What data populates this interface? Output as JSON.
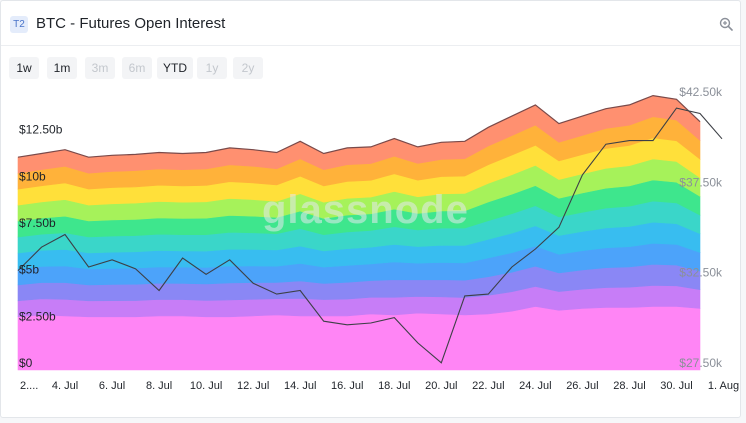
{
  "header": {
    "tier_badge": "T2",
    "title": "BTC - Futures Open Interest"
  },
  "toolbar": {
    "ranges": [
      {
        "label": "1w",
        "enabled": true
      },
      {
        "label": "1m",
        "enabled": true
      },
      {
        "label": "3m",
        "enabled": false
      },
      {
        "label": "6m",
        "enabled": false
      },
      {
        "label": "YTD",
        "enabled": true
      },
      {
        "label": "1y",
        "enabled": false
      },
      {
        "label": "2y",
        "enabled": false
      }
    ]
  },
  "watermark": "glassnode",
  "chart_data": {
    "type": "area",
    "stacked": true,
    "x_tick_labels": [
      "2....",
      "4. Jul",
      "6. Jul",
      "8. Jul",
      "10. Jul",
      "12. Jul",
      "14. Jul",
      "16. Jul",
      "18. Jul",
      "20. Jul",
      "22. Jul",
      "24. Jul",
      "26. Jul",
      "28. Jul",
      "30. Jul",
      "1. Aug"
    ],
    "x_day_index": [
      0,
      2,
      4,
      6,
      8,
      10,
      12,
      14,
      16,
      18,
      20,
      22,
      24,
      26,
      28,
      30
    ],
    "left_axis": {
      "ticks": [
        0,
        2.5,
        5,
        7.5,
        10,
        12.5
      ],
      "tick_labels": [
        "$0",
        "$2.50b",
        "$5b",
        "$7.50b",
        "$10b",
        "$12.50b"
      ],
      "range": [
        0,
        15
      ]
    },
    "right_axis": {
      "ticks": [
        27500,
        32500,
        37500,
        42500
      ],
      "tick_labels": [
        "$27.50k",
        "$32.50k",
        "$37.50k",
        "$42.50k"
      ],
      "range": [
        27500,
        43000
      ]
    },
    "stack_colors": [
      "#ff85f5",
      "#c77df7",
      "#8a87f5",
      "#4ca3fa",
      "#38bdf0",
      "#3ad6c9",
      "#3ee68d",
      "#a6f25a",
      "#ffe03a",
      "#ffb23a",
      "#ff9070"
    ],
    "totals_billion": [
      11.4,
      11.6,
      11.8,
      11.4,
      11.5,
      11.55,
      11.65,
      11.6,
      11.65,
      11.9,
      11.8,
      11.65,
      12.25,
      11.6,
      11.9,
      11.95,
      12.4,
      11.95,
      12.2,
      12.25,
      13.0,
      13.6,
      14.2,
      13.2,
      13.6,
      14.0,
      14.2,
      14.7,
      14.5,
      13.3
    ],
    "bottom_layer_billion": [
      2.85,
      2.95,
      2.9,
      2.85,
      2.85,
      2.85,
      2.9,
      2.9,
      2.85,
      2.85,
      2.9,
      2.95,
      2.9,
      2.9,
      2.9,
      3.0,
      2.95,
      3.05,
      3.0,
      2.95,
      3.0,
      3.15,
      3.4,
      3.2,
      3.3,
      3.35,
      3.35,
      3.4,
      3.4,
      3.3
    ],
    "price_series": {
      "axis": "right",
      "color": "#3d4046",
      "values_usd": [
        33000,
        34300,
        35000,
        33200,
        33600,
        33100,
        31900,
        33700,
        32800,
        33600,
        32300,
        31700,
        31900,
        30200,
        30000,
        30100,
        30400,
        29000,
        27900,
        31600,
        31700,
        33200,
        34200,
        35400,
        38300,
        40000,
        40200,
        40200,
        42000,
        41700
      ]
    }
  }
}
